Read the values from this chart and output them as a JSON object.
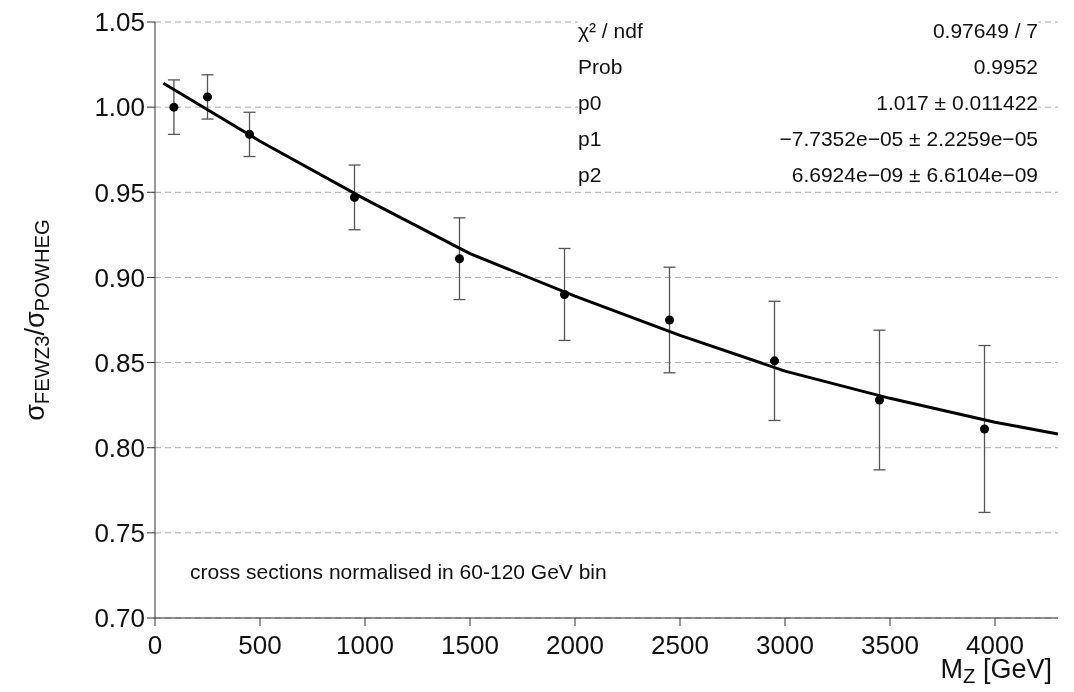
{
  "chart_data": {
    "type": "scatter",
    "xlabel": "M$_{Z}$ [GeV]",
    "ylabel": "σ$_{FEWZ3}$/σ$_{POWHEG}$",
    "x": [
      90,
      250,
      450,
      950,
      1450,
      1950,
      2450,
      2950,
      3450,
      3950
    ],
    "series": [
      {
        "color": "#000000",
        "values": [
          1.0,
          1.006,
          0.984,
          0.947,
          0.911,
          0.89,
          0.875,
          0.851,
          0.828,
          0.811
        ],
        "errors": [
          0.016,
          0.013,
          0.013,
          0.019,
          0.024,
          0.027,
          0.031,
          0.035,
          0.041,
          0.049
        ]
      },
      {
        "type": "line",
        "color": "#000000",
        "marker": "none",
        "x": [
          40,
          500,
          1000,
          1500,
          2000,
          2500,
          3000,
          3500,
          4000,
          4300
        ],
        "values": [
          1.014,
          0.98,
          0.946,
          0.914,
          0.889,
          0.866,
          0.845,
          0.829,
          0.815,
          0.808
        ]
      }
    ],
    "xlim": [
      0,
      4300
    ],
    "xticks": [
      0,
      500,
      1000,
      1500,
      2000,
      2500,
      3000,
      3500,
      4000
    ],
    "ylim": [
      0.7,
      1.05
    ],
    "yticks": [
      {
        "value": 0.7,
        "label": "0.70"
      },
      {
        "value": 0.75,
        "label": "0.75"
      },
      {
        "value": 0.8,
        "label": "0.80"
      },
      {
        "value": 0.85,
        "label": "0.85"
      },
      {
        "value": 0.9,
        "label": "0.90"
      },
      {
        "value": 0.95,
        "label": "0.95"
      },
      {
        "value": 1.0,
        "label": "1.00"
      },
      {
        "value": 1.05,
        "label": "1.05"
      }
    ],
    "grid": "y",
    "marker": "circle",
    "annotations": [
      "χ² / ndf",
      "0.97649 / 7",
      "Prob",
      "0.9952",
      "p0",
      "1.017 ± 0.011422",
      "p1",
      "−7.7352e−05 ± 2.2259e−05",
      "p2",
      "6.6924e−09 ± 6.6104e−09",
      "cross sections normalised in 60-120 GeV bin"
    ]
  }
}
